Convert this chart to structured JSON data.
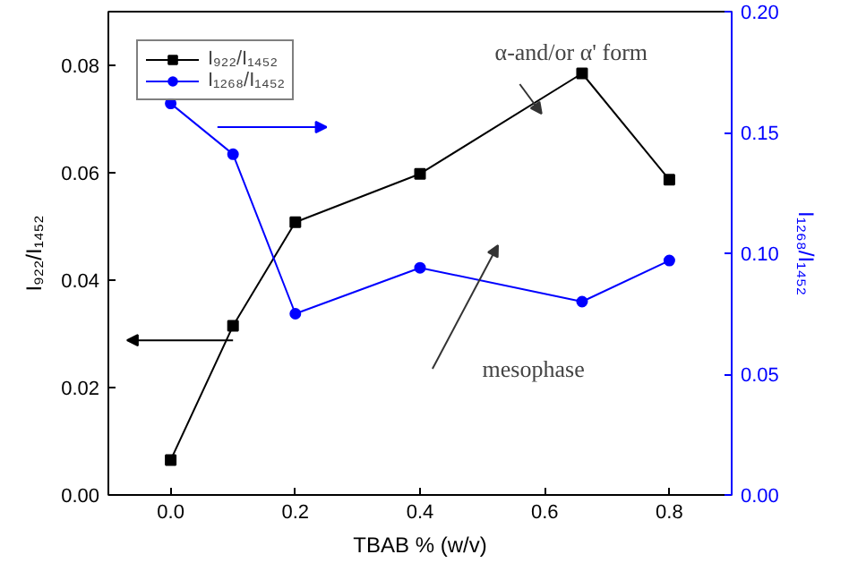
{
  "chart_data": {
    "type": "line",
    "xlabel": "TBAB % (w/v)",
    "ylabel": "I₉₂₂/I₁₄₅₂",
    "y2label": "I₁₂₆₈/I₁₄₅₂",
    "x": [
      0.0,
      0.1,
      0.2,
      0.4,
      0.66,
      0.8
    ],
    "series": [
      {
        "name": "I₉₂₂/I₁₄₅₂",
        "color": "#000000",
        "marker": "square",
        "values": [
          0.0065,
          0.0315,
          0.0508,
          0.0598,
          0.0785,
          0.0587
        ]
      },
      {
        "name": "I₁₂₆₈/I₁₄₅₂",
        "color": "#0000ff",
        "marker": "circle",
        "axis": "y2",
        "values": [
          0.162,
          0.141,
          0.075,
          0.094,
          0.08,
          0.097
        ]
      }
    ],
    "xlim": [
      -0.1,
      0.9
    ],
    "xticks": [
      {
        "value": 0,
        "label": "0.0"
      },
      {
        "value": 0.2,
        "label": "0.2"
      },
      {
        "value": 0.4,
        "label": "0.4"
      },
      {
        "value": 0.6,
        "label": "0.6"
      },
      {
        "value": 0.8,
        "label": "0.8"
      }
    ],
    "ylim": [
      0,
      0.09
    ],
    "yticks": [
      {
        "value": 0,
        "label": "0.00"
      },
      {
        "value": 0.02,
        "label": "0.02"
      },
      {
        "value": 0.04,
        "label": "0.04"
      },
      {
        "value": 0.06,
        "label": "0.06"
      },
      {
        "value": 0.08,
        "label": "0.08"
      }
    ],
    "y2lim": [
      0,
      0.2
    ],
    "y2ticks": [
      {
        "value": 0,
        "label": "0.00"
      },
      {
        "value": 0.05,
        "label": "0.05"
      },
      {
        "value": 0.1,
        "label": "0.10"
      },
      {
        "value": 0.15,
        "label": "0.15"
      },
      {
        "value": 0.2,
        "label": "0.20"
      }
    ],
    "annotations": [
      "α-and/or α' form",
      "mesophase"
    ],
    "grid": false,
    "legend": "top left"
  }
}
